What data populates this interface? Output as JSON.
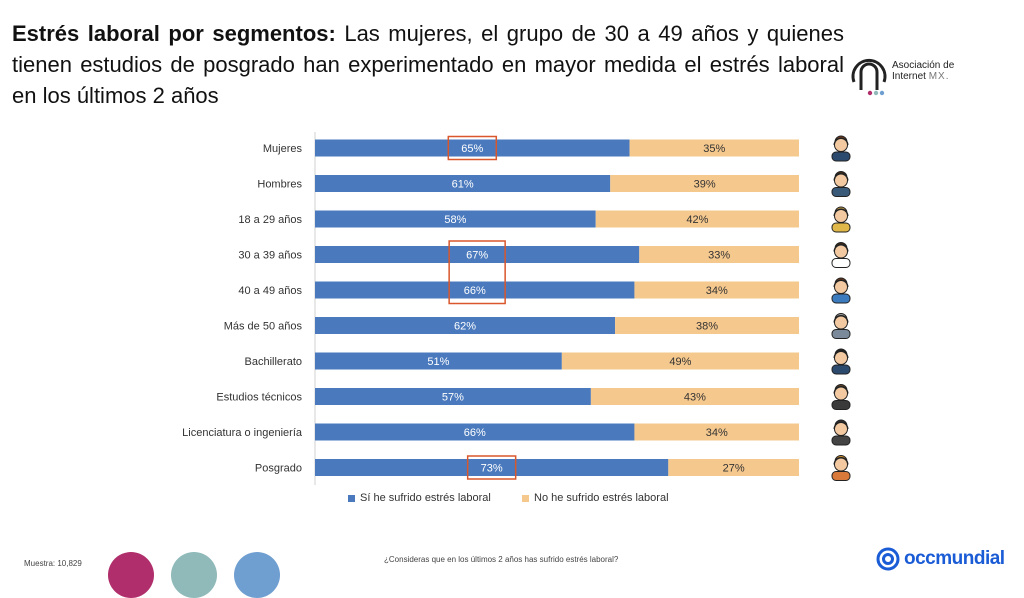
{
  "header": {
    "title_bold": "Estrés laboral por segmentos:",
    "title_rest": " Las mujeres, el grupo de 30 a 49 años y quienes tienen estudios de posgrado han experimentado en mayor medida el estrés laboral en los últimos 2 años"
  },
  "logo": {
    "line1": "Asociación de",
    "line2": "Internet",
    "line3": "MX."
  },
  "colors": {
    "series1": "#4a7abd",
    "series2": "#f5c88e",
    "highlight_box": "#d9572b",
    "dot1": "#b02e6b",
    "dot2": "#8fbab9",
    "dot3": "#6f9ed1",
    "occ_brand": "#1a5bd6"
  },
  "chart_data": {
    "type": "bar",
    "orientation": "horizontal",
    "stacked": "100%",
    "categories": [
      "Mujeres",
      "Hombres",
      "18 a 29 años",
      "30 a 39 años",
      "40 a 49 años",
      "Más de 50 años",
      "Bachillerato",
      "Estudios técnicos",
      "Licenciatura o ingeniería",
      "Posgrado"
    ],
    "series": [
      {
        "name": "Sí he sufrido estrés laboral",
        "values": [
          65,
          61,
          58,
          67,
          66,
          62,
          51,
          57,
          66,
          73
        ]
      },
      {
        "name": "No he sufrido estrés laboral",
        "values": [
          35,
          39,
          42,
          33,
          34,
          38,
          49,
          43,
          34,
          27
        ]
      }
    ],
    "value_labels": [
      [
        "65%",
        "61%",
        "58%",
        "67%",
        "66%",
        "62%",
        "51%",
        "57%",
        "66%",
        "73%"
      ],
      [
        "35%",
        "39%",
        "42%",
        "33%",
        "34%",
        "38%",
        "49%",
        "43%",
        "34%",
        "27%"
      ]
    ],
    "xlim": [
      0,
      100
    ],
    "highlighted": [
      [
        0
      ],
      [
        3,
        4
      ],
      [
        9
      ]
    ],
    "legend_position": "bottom",
    "grid": false
  },
  "segment_icons": [
    "woman-icon",
    "man-icon",
    "young-person-icon",
    "woman-glasses-icon",
    "couple-icon",
    "older-couple-icon",
    "graduate-icon",
    "technician-icon",
    "engineer-icon",
    "postgraduate-icon"
  ],
  "footer": {
    "sample": "Muestra: 10,829",
    "question": "¿Consideras que en los últimos 2 años has sufrido estrés laboral?",
    "brand": "occmundial"
  }
}
